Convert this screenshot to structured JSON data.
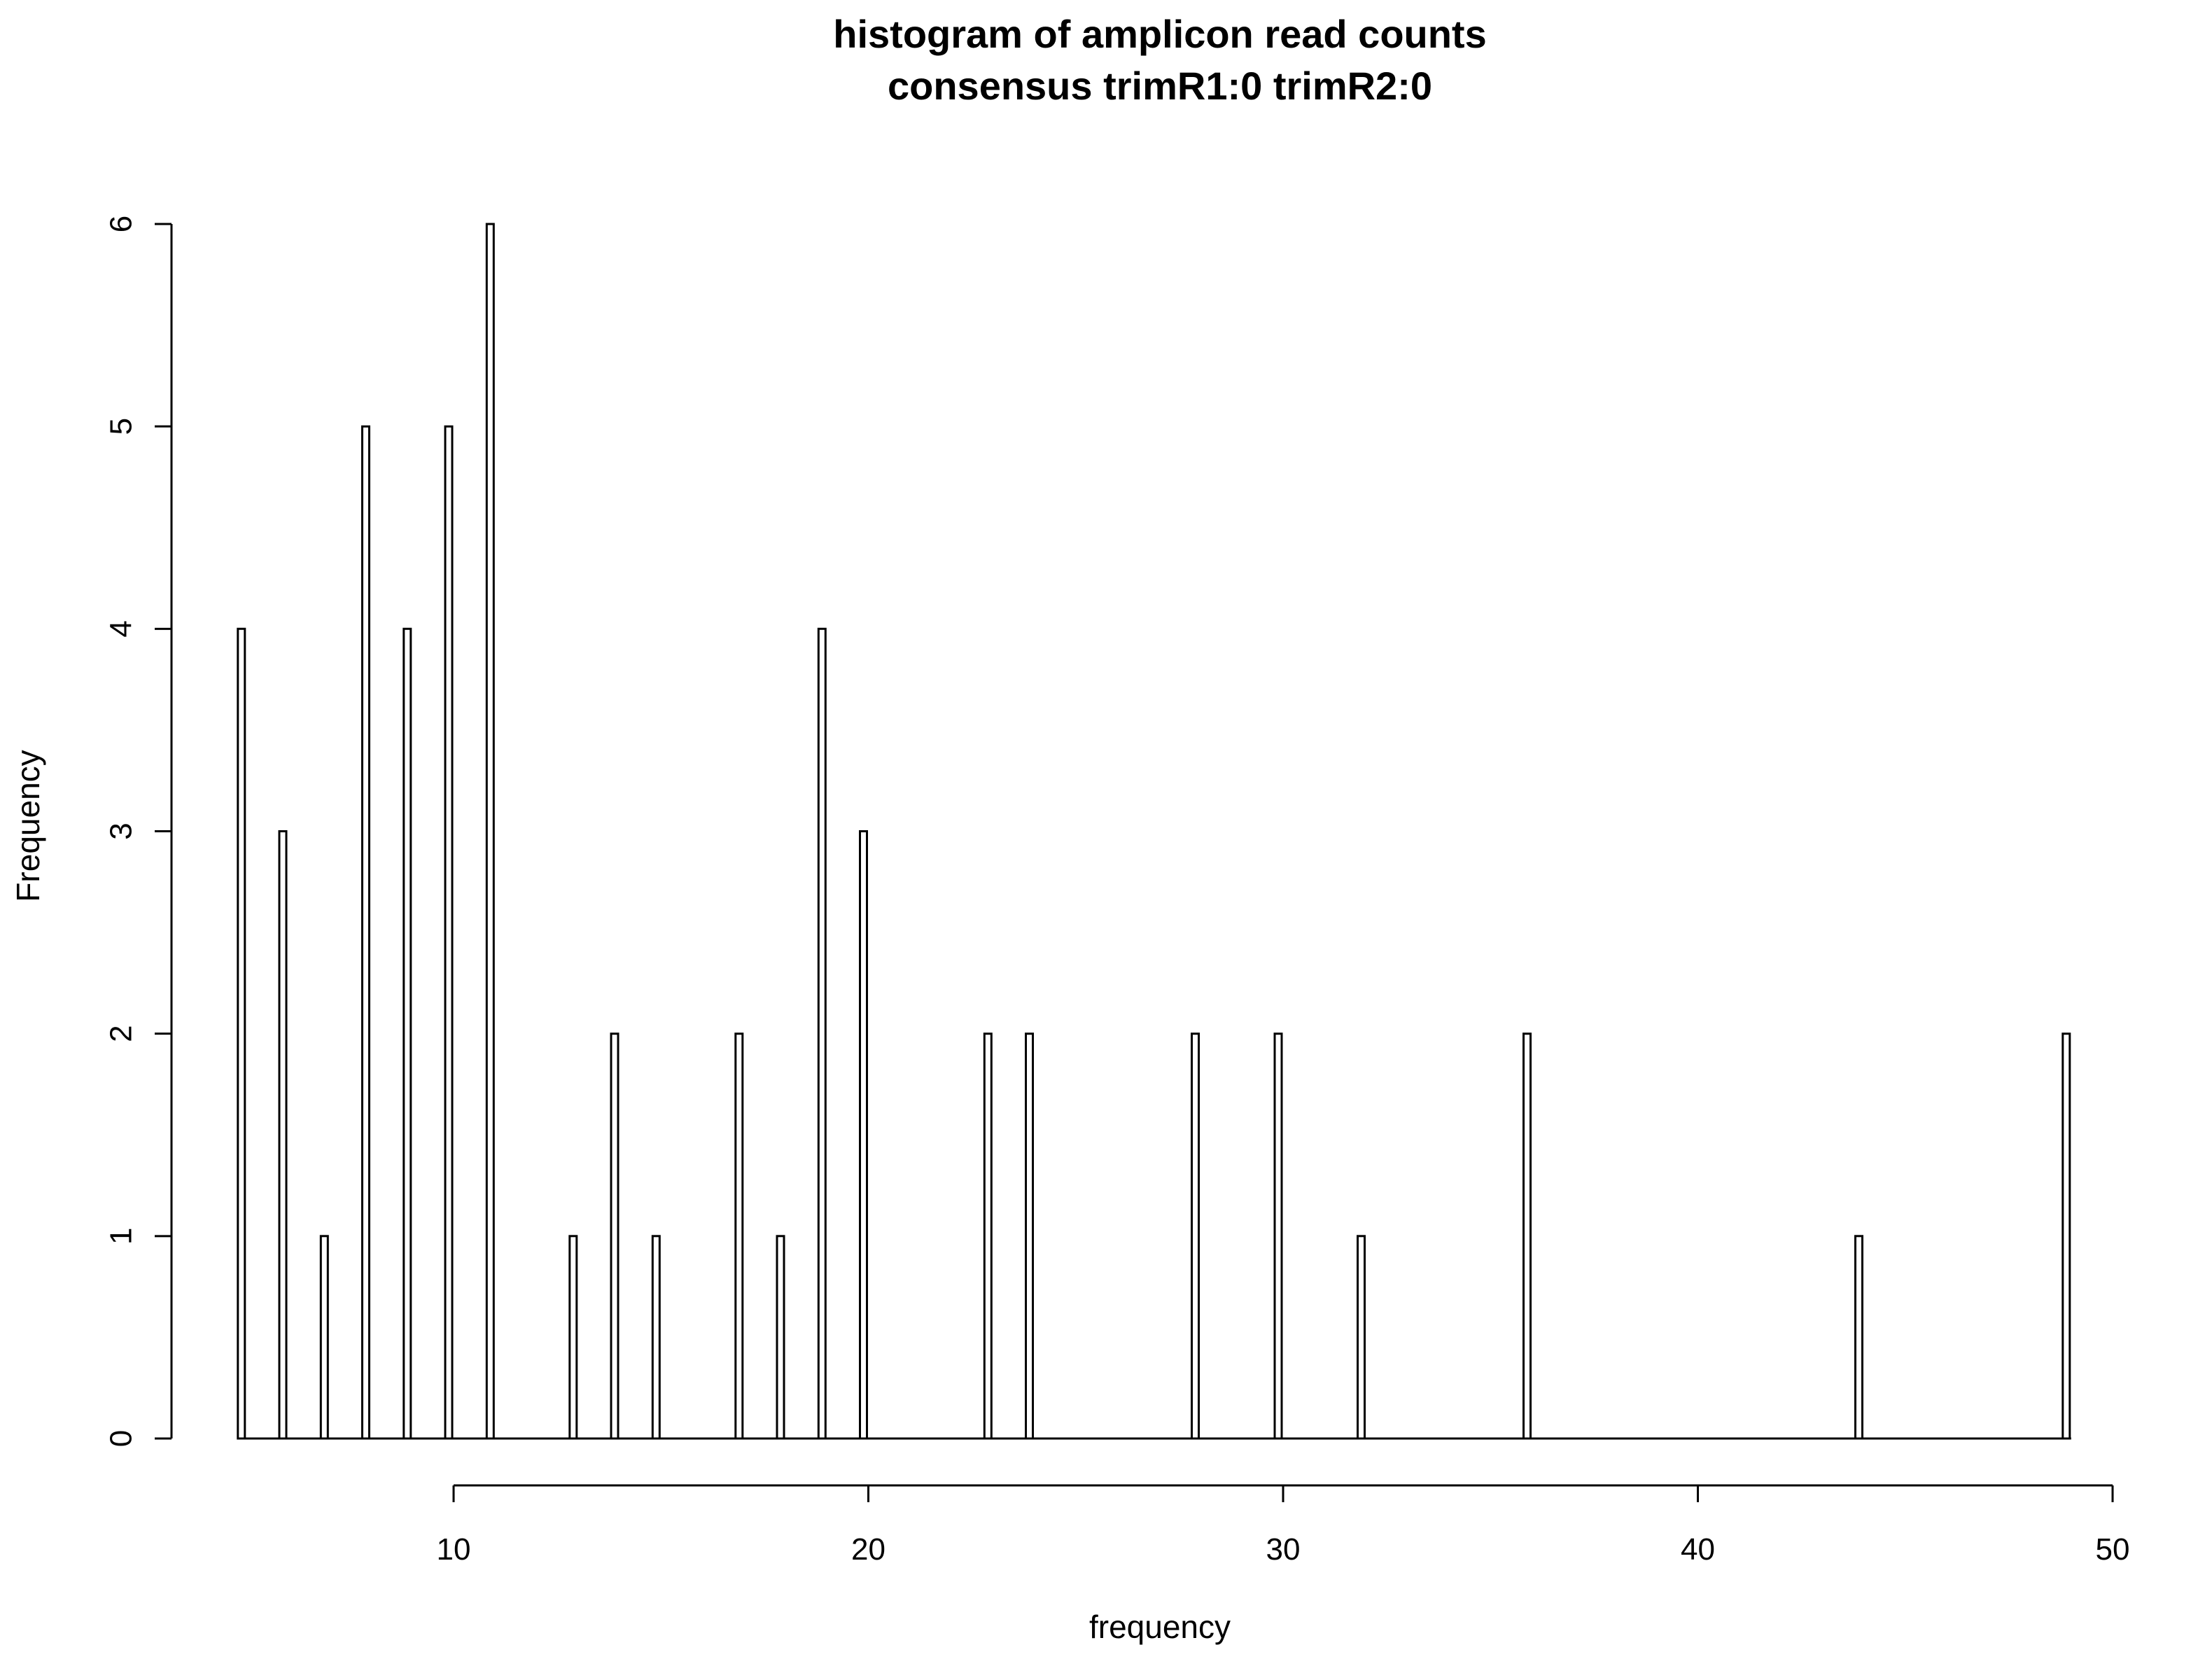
{
  "chart_data": {
    "type": "bar",
    "title": "histogram of amplicon read counts",
    "subtitle": "consensus trimR1:0 trimR2:0",
    "xlabel": "frequency",
    "ylabel": "Frequency",
    "xlim": [
      10,
      50
    ],
    "ylim": [
      0,
      6
    ],
    "x_ticks": [
      10,
      20,
      30,
      40,
      50
    ],
    "y_ticks": [
      0,
      1,
      2,
      3,
      4,
      5,
      6
    ],
    "grid": false,
    "x": [
      5,
      6,
      7,
      8,
      9,
      10,
      11,
      13,
      14,
      15,
      17,
      18,
      19,
      20,
      23,
      24,
      28,
      30,
      32,
      36,
      44,
      49
    ],
    "values": [
      4,
      3,
      1,
      5,
      4,
      5,
      6,
      1,
      2,
      1,
      2,
      1,
      4,
      3,
      2,
      2,
      2,
      2,
      1,
      2,
      1,
      2
    ],
    "bar_color": "#ffffff",
    "outline_color": "#000000"
  }
}
